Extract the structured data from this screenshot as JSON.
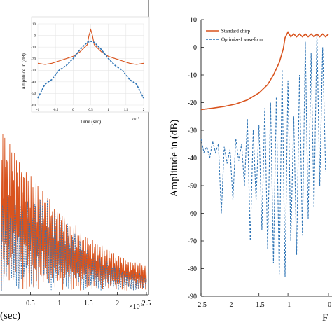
{
  "chart_data": [
    {
      "id": "left_main",
      "type": "line",
      "xlabel": "(sec)",
      "xticks": [
        "0.5",
        "1",
        "1.5",
        "2",
        "2.5"
      ],
      "x_exponent": "×10",
      "x_exponent_power": "-5",
      "xlim": [
        0.0,
        2.5
      ],
      "grid": false,
      "series": [
        {
          "color": "#d9541e",
          "style": "solid",
          "envelope_x": [
            0.0,
            0.25,
            0.5,
            0.75,
            1.0,
            1.25,
            1.5,
            1.75,
            2.0,
            2.25,
            2.5
          ],
          "envelope_y_rel": [
            1.0,
            0.85,
            0.72,
            0.62,
            0.52,
            0.42,
            0.34,
            0.28,
            0.22,
            0.18,
            0.16
          ]
        },
        {
          "color": "#2e74b5",
          "style": "dashed",
          "envelope_x": [
            0.0,
            0.5,
            0.7,
            1.0,
            1.3,
            1.5,
            2.0,
            2.5
          ],
          "envelope_y_rel": [
            0.6,
            0.55,
            0.6,
            0.5,
            0.35,
            0.25,
            0.15,
            0.1
          ]
        }
      ]
    },
    {
      "id": "left_inset",
      "type": "line",
      "xlabel": "Time (sec)",
      "ylabel": "Amplitude in (dB)",
      "yticks": [
        "10",
        "0",
        "-10",
        "-20",
        "-30",
        "-40",
        "-50",
        "-60"
      ],
      "ylim": [
        -60,
        10
      ],
      "xticks": [
        "-1",
        "-0.5",
        "0",
        "0.5",
        "1",
        "1.5",
        "2"
      ],
      "xlim": [
        -1,
        2
      ],
      "x_exponent": "×10",
      "x_exponent_power": "-5",
      "grid": true,
      "series": [
        {
          "color": "#d9541e",
          "style": "solid",
          "x": [
            -1.0,
            -0.8,
            -0.6,
            -0.4,
            -0.2,
            0.0,
            0.2,
            0.4,
            0.45,
            0.5,
            0.55,
            0.6,
            0.8,
            1.0,
            1.2,
            1.4,
            1.6,
            1.8,
            2.0
          ],
          "y": [
            -24,
            -25,
            -24,
            -22,
            -20,
            -18,
            -14,
            -8,
            0,
            5,
            0,
            -8,
            -14,
            -18,
            -20,
            -22,
            -24,
            -25,
            -24
          ]
        },
        {
          "color": "#2e74b5",
          "style": "dashed",
          "x": [
            -1.0,
            -0.8,
            -0.6,
            -0.4,
            -0.2,
            0.0,
            0.2,
            0.4,
            0.5,
            0.6,
            0.8,
            1.0,
            1.2,
            1.4,
            1.6,
            1.8,
            2.0
          ],
          "y": [
            -54,
            -42,
            -38,
            -30,
            -26,
            -20,
            -12,
            -6,
            -5,
            -6,
            -12,
            -20,
            -26,
            -30,
            -38,
            -42,
            -54
          ]
        }
      ]
    },
    {
      "id": "right_main",
      "type": "line",
      "ylabel": "Amplitude in (dB)",
      "xlabel": "F",
      "yticks": [
        "10",
        "0",
        "-10",
        "-20",
        "-30",
        "-40",
        "-50",
        "-60",
        "-70",
        "-80",
        "-90"
      ],
      "ylim": [
        -90,
        10
      ],
      "xticks": [
        "-2.5",
        "-2",
        "-1.5",
        "-1",
        "-0"
      ],
      "xlim": [
        -2.5,
        -0.3
      ],
      "legend": {
        "position": "top-left",
        "entries": [
          "Standard chirp",
          "Optimized waveform"
        ]
      },
      "grid": false,
      "series": [
        {
          "name": "Standard chirp",
          "color": "#d9541e",
          "style": "solid",
          "x": [
            -2.5,
            -2.3,
            -2.1,
            -1.9,
            -1.7,
            -1.5,
            -1.35,
            -1.25,
            -1.15,
            -1.08,
            -1.05,
            -1.0,
            -0.95,
            -0.9,
            -0.85,
            -0.8,
            -0.75,
            -0.7,
            -0.65,
            -0.6,
            -0.55,
            -0.5,
            -0.45,
            -0.4,
            -0.35,
            -0.3
          ],
          "y": [
            -22.5,
            -22,
            -21.4,
            -20.5,
            -19,
            -16.5,
            -13.5,
            -10,
            -5.5,
            -0.5,
            3.5,
            5.5,
            3.8,
            4.8,
            3.8,
            4.8,
            3.8,
            4.8,
            3.8,
            4.8,
            3.8,
            4.8,
            3.8,
            4.8,
            3.8,
            4.8
          ]
        },
        {
          "name": "Optimized waveform",
          "color": "#2e74b5",
          "style": "dashed",
          "x": [
            -2.5,
            -2.45,
            -2.4,
            -2.35,
            -2.3,
            -2.25,
            -2.2,
            -2.15,
            -2.1,
            -2.05,
            -2.0,
            -1.95,
            -1.9,
            -1.85,
            -1.8,
            -1.75,
            -1.7,
            -1.65,
            -1.6,
            -1.55,
            -1.5,
            -1.45,
            -1.4,
            -1.35,
            -1.3,
            -1.25,
            -1.2,
            -1.15,
            -1.1,
            -1.05,
            -1.0,
            -0.95,
            -0.9,
            -0.85,
            -0.8,
            -0.75,
            -0.7,
            -0.65,
            -0.6,
            -0.55,
            -0.5,
            -0.45,
            -0.4,
            -0.35
          ],
          "y": [
            -33,
            -38,
            -36,
            -40,
            -34,
            -38,
            -35,
            -60,
            -36,
            -42,
            -37,
            -55,
            -33,
            -41,
            -35,
            -50,
            -26,
            -70,
            -30,
            -55,
            -28,
            -66,
            -22,
            -73,
            -20,
            -78,
            -18,
            -82,
            -8,
            -83,
            -12,
            -70,
            -25,
            -75,
            -10,
            -68,
            2,
            -62,
            -2,
            -58,
            5,
            -50,
            0,
            -45
          ]
        }
      ]
    }
  ]
}
